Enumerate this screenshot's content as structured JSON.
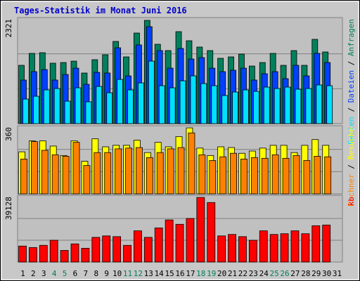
{
  "title": "Tages-Statistik im Monat Juni 2016",
  "legend_separator": " / ",
  "chart_data": [
    {
      "type": "bar",
      "ylim": [
        0,
        2321
      ],
      "yticks": [
        2321
      ],
      "grid_divisions": 3,
      "series": [
        {
          "name": "Anfragen",
          "color": "#00805c",
          "values": [
            1293,
            1558,
            1573,
            1340,
            1355,
            1386,
            1122,
            1418,
            1527,
            1823,
            1480,
            2009,
            2290,
            1760,
            1620,
            2040,
            1838,
            1698,
            1620,
            1449,
            1480,
            1542,
            1277,
            1355,
            1558,
            1293,
            1620,
            1293,
            1869,
            1589,
            null
          ]
        },
        {
          "name": "Dateien",
          "color": "#0040ff",
          "values": [
            966,
            1153,
            1199,
            966,
            1090,
            1230,
            872,
            1137,
            1122,
            1682,
            1059,
            1745,
            2150,
            1620,
            1230,
            1667,
            1433,
            1464,
            1230,
            1153,
            1184,
            1230,
            966,
            1106,
            1153,
            997,
            1293,
            1059,
            1558,
            1355,
            null
          ]
        },
        {
          "name": "Seiten",
          "color": "#00e0ff",
          "values": [
            545,
            607,
            748,
            779,
            498,
            794,
            483,
            825,
            685,
            981,
            748,
            903,
            1386,
            841,
            794,
            950,
            1059,
            888,
            841,
            623,
            701,
            748,
            716,
            810,
            779,
            810,
            763,
            779,
            857,
            841,
            null
          ]
        }
      ]
    },
    {
      "type": "bar",
      "ylim": [
        0,
        360
      ],
      "yticks": [
        360
      ],
      "grid_divisions": 3,
      "series": [
        {
          "name": "Besuche",
          "color": "#ffff00",
          "values": [
            227,
            286,
            286,
            258,
            207,
            286,
            176,
            297,
            254,
            262,
            262,
            290,
            223,
            278,
            254,
            309,
            356,
            247,
            207,
            254,
            250,
            219,
            231,
            247,
            262,
            262,
            223,
            262,
            293,
            262,
            null
          ]
        },
        {
          "name": "Rechner",
          "color": "#ff8000",
          "values": [
            188,
            282,
            235,
            211,
            203,
            278,
            153,
            223,
            223,
            243,
            247,
            250,
            196,
            223,
            243,
            250,
            329,
            211,
            180,
            200,
            219,
            188,
            196,
            192,
            211,
            192,
            207,
            180,
            203,
            200,
            null
          ]
        }
      ]
    },
    {
      "type": "bar",
      "ylim": [
        0,
        39128
      ],
      "yticks": [
        39128
      ],
      "grid_divisions": 3,
      "categories": [
        "1",
        "2",
        "3",
        "4",
        "5",
        "6",
        "7",
        "8",
        "9",
        "10",
        "11",
        "12",
        "13",
        "14",
        "15",
        "16",
        "17",
        "18",
        "19",
        "20",
        "21",
        "22",
        "23",
        "24",
        "25",
        "26",
        "27",
        "28",
        "29",
        "30",
        "31"
      ],
      "category_colors": [
        "#000",
        "#000",
        "#000",
        "#00805c",
        "#00805c",
        "#000",
        "#000",
        "#000",
        "#000",
        "#000",
        "#00805c",
        "#00805c",
        "#000",
        "#000",
        "#000",
        "#000",
        "#000",
        "#00805c",
        "#00805c",
        "#000",
        "#000",
        "#000",
        "#000",
        "#000",
        "#00805c",
        "#00805c",
        "#000",
        "#000",
        "#000",
        "#000",
        "#000"
      ],
      "series": [
        {
          "name": "kb",
          "color": "#ff0000",
          "values": [
            9565,
            8695,
            10000,
            13043,
            6956,
            10869,
            8260,
            14782,
            15652,
            15217,
            10000,
            18695,
            14782,
            20434,
            25216,
            22607,
            26086,
            38693,
            35650,
            15652,
            16521,
            15217,
            13043,
            18695,
            16521,
            16956,
            18695,
            16956,
            21738,
            22173,
            null
          ]
        }
      ]
    }
  ]
}
